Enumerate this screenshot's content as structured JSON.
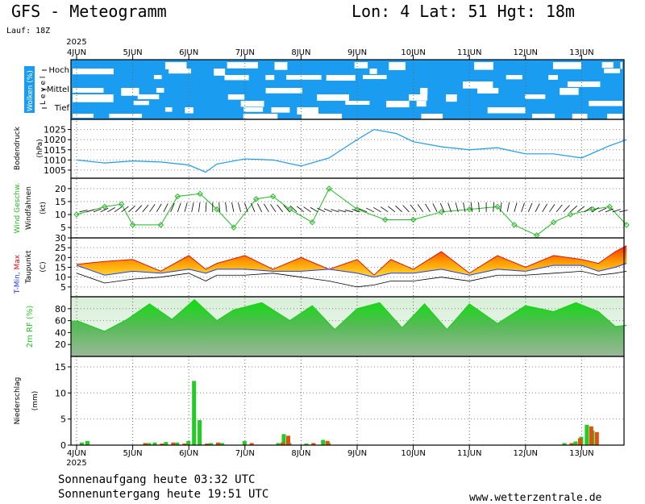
{
  "header": {
    "title_left": "GFS - Meteogramm",
    "title_right": "Lon: 4  Lat: 51  Hgt: 18m",
    "run": "Lauf: 18Z"
  },
  "footer": {
    "sunrise": "Sonnenaufgang heute 03:32 UTC",
    "sunset": "Sonnenuntergang heute 19:51 UTC",
    "website": "www.wetterzentrale.de"
  },
  "colors": {
    "cloud_blue": "#1a9cf0",
    "pressure_line": "#1a9cf0",
    "wind_green": "#22bb22",
    "tmin_blue": "#1a3cff",
    "tmax_red": "#e01010",
    "dewpoint": "#000000",
    "humidity_green": "#22cc22",
    "precip_green": "#22cc22",
    "precip_red": "#e05010"
  },
  "chart_data": [
    {
      "type": "heatmap",
      "panel": "clouds",
      "ylabel": "Wolken (%)",
      "levels": [
        "Hoch",
        "Mittel",
        "Tief"
      ],
      "level_axis_label": "Level",
      "x_dates": [
        "4JUN",
        "5JUN",
        "6JUN",
        "7JUN",
        "8JUN",
        "9JUN",
        "10JUN",
        "11JUN",
        "12JUN",
        "13JUN"
      ],
      "year": "2025"
    },
    {
      "type": "line",
      "panel": "pressure",
      "ylabel": "Bodendruck (hPa)",
      "yticks": [
        1005,
        1010,
        1015,
        1020,
        1025
      ],
      "ylim": [
        1001,
        1030
      ],
      "x_days": [
        0,
        0.5,
        1,
        1.5,
        2,
        2.3,
        2.5,
        3,
        3.5,
        4,
        4.5,
        5,
        5.3,
        5.7,
        6,
        6.5,
        7,
        7.5,
        8,
        8.5,
        9,
        9.5,
        9.8
      ],
      "values": [
        1010,
        1008.5,
        1009.5,
        1009,
        1007.5,
        1004,
        1008,
        1010.5,
        1010,
        1007,
        1011,
        1020,
        1025,
        1023,
        1019,
        1016.5,
        1015,
        1016,
        1013,
        1013,
        1011,
        1017,
        1020
      ]
    },
    {
      "type": "line",
      "panel": "wind",
      "ylabel": "Wind Geschw. (kt)",
      "ylabel2": "Windfahnen",
      "yticks": [
        5,
        10,
        15,
        20
      ],
      "ylim": [
        1,
        24
      ],
      "x_days": [
        0,
        0.5,
        0.8,
        1,
        1.5,
        1.8,
        2.2,
        2.5,
        2.8,
        3.2,
        3.5,
        3.8,
        4.2,
        4.5,
        5,
        5.5,
        6,
        6.5,
        7,
        7.5,
        7.8,
        8.2,
        8.5,
        8.8,
        9.2,
        9.5,
        9.8
      ],
      "values": [
        10,
        13,
        14,
        6,
        6,
        17,
        18,
        12,
        5,
        16,
        17,
        12,
        7,
        20,
        12,
        8,
        8,
        11,
        12,
        13,
        6,
        2,
        7,
        10,
        12,
        13,
        6
      ]
    },
    {
      "type": "area",
      "panel": "temperature",
      "ylabel": "T-Min, Max Taupunkt (C)",
      "yticks": [
        5,
        10,
        15,
        20,
        25,
        30
      ],
      "ylim": [
        0,
        30
      ],
      "x_days": [
        0,
        0.5,
        1,
        1.5,
        2,
        2.3,
        2.5,
        3,
        3.5,
        4,
        4.5,
        5,
        5.3,
        5.6,
        6,
        6.5,
        7,
        7.5,
        8,
        8.5,
        9,
        9.3,
        9.6,
        9.8
      ],
      "tmax": [
        16.5,
        18,
        19,
        13,
        21,
        14,
        17,
        21,
        14,
        20,
        14,
        19,
        11,
        19,
        14,
        23,
        12,
        21,
        15,
        21,
        19,
        17,
        23,
        26
      ],
      "tmin": [
        16,
        11,
        13,
        12,
        14,
        12,
        14,
        14,
        13,
        13,
        14,
        12,
        10,
        12,
        12,
        14,
        11,
        14,
        13,
        16,
        16,
        13,
        15,
        17
      ],
      "dewpoint": [
        12,
        7,
        9,
        10,
        12,
        8,
        11,
        11,
        12,
        10,
        8,
        5,
        6,
        8,
        8,
        10,
        8,
        11,
        11,
        12,
        13,
        11,
        12,
        13
      ]
    },
    {
      "type": "area",
      "panel": "humidity",
      "ylabel": "2m RF (%)",
      "yticks": [
        20,
        40,
        60,
        80
      ],
      "ylim": [
        0,
        100
      ],
      "x_days": [
        0,
        0.5,
        0.9,
        1.3,
        1.7,
        2.1,
        2.5,
        2.8,
        3.3,
        3.8,
        4.2,
        4.6,
        5.0,
        5.4,
        5.8,
        6.2,
        6.6,
        7.0,
        7.5,
        8.0,
        8.5,
        8.9,
        9.3,
        9.6,
        9.8
      ],
      "values": [
        60,
        42,
        62,
        88,
        62,
        95,
        60,
        78,
        90,
        60,
        85,
        45,
        80,
        90,
        48,
        88,
        45,
        88,
        55,
        85,
        75,
        90,
        75,
        50,
        52
      ]
    },
    {
      "type": "bar",
      "panel": "precipitation",
      "ylabel": "Niederschlag (mm)",
      "yticks": [
        0,
        5,
        10,
        15
      ],
      "ylim": [
        0,
        17
      ],
      "series": [
        {
          "x_days": [
            0.1,
            0.2,
            1.3,
            1.4,
            1.6,
            1.8,
            2.0,
            2.1,
            2.2,
            2.4,
            2.6,
            3.0,
            3.6,
            3.7,
            3.8,
            4.1,
            4.4,
            4.5,
            8.7,
            8.9,
            9.0,
            9.1,
            9.2
          ],
          "values": [
            0.5,
            0.8,
            0.4,
            0.5,
            0.6,
            0.5,
            0.8,
            12.3,
            4.8,
            0.4,
            0.4,
            0.8,
            0.4,
            2.1,
            0.4,
            0.3,
            1.0,
            0.4,
            0.4,
            0.7,
            1.6,
            3.9,
            2.8
          ],
          "name": ""
        },
        {
          "x_days": [
            1.2,
            1.5,
            1.7,
            1.9,
            2.3,
            2.5,
            3.1,
            3.65,
            3.75,
            4.2,
            4.45,
            8.8,
            8.95,
            9.15,
            9.25
          ],
          "values": [
            0.4,
            0.3,
            0.5,
            0.3,
            0.3,
            0.5,
            0.4,
            0.5,
            1.8,
            0.4,
            0.8,
            0.4,
            1.3,
            3.6,
            2.5
          ],
          "name": ""
        }
      ]
    }
  ],
  "x_axis": {
    "labels": [
      "4JUN",
      "5JUN",
      "6JUN",
      "7JUN",
      "8JUN",
      "9JUN",
      "10JUN",
      "11JUN",
      "12JUN",
      "13JUN"
    ],
    "year": "2025"
  }
}
